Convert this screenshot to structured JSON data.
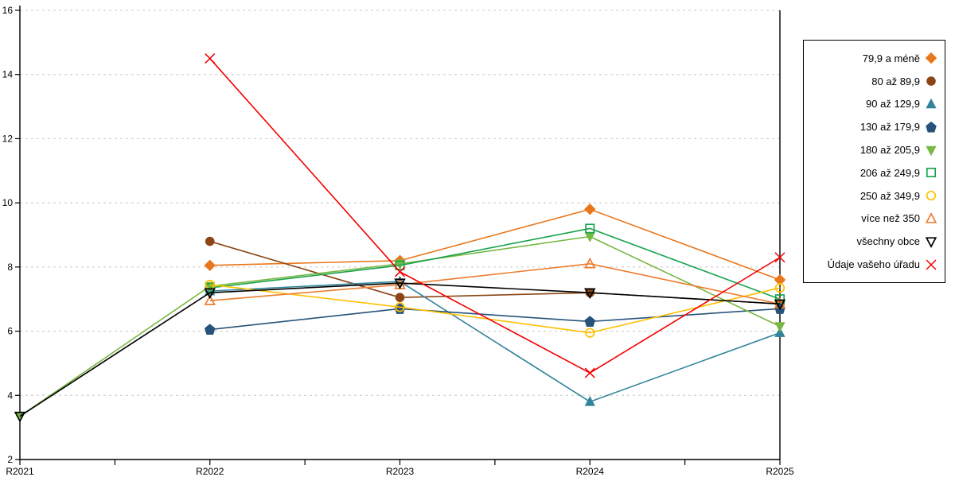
{
  "chart_data": {
    "type": "line",
    "title": "",
    "xlabel": "",
    "ylabel": "",
    "x_categories": [
      "R2021",
      "R2022",
      "R2023",
      "R2024",
      "R2025"
    ],
    "y_ticks": [
      2,
      4,
      6,
      8,
      10,
      12,
      14,
      16
    ],
    "ylim": [
      2,
      16
    ],
    "grid": "horizontal-dashed",
    "legend_position": "right-outside",
    "colors": {
      "gridline": "#c8c8c8",
      "axis": "#000000",
      "background": "#ffffff"
    },
    "series": [
      {
        "name": "79,9 a méně",
        "marker": "diamond",
        "filled": true,
        "color": "#e8761b",
        "values": [
          null,
          8.05,
          8.2,
          9.8,
          7.6
        ]
      },
      {
        "name": "80 až 89,9",
        "marker": "circle",
        "filled": true,
        "color": "#8c4515",
        "values": [
          null,
          8.8,
          7.05,
          7.2,
          6.85
        ]
      },
      {
        "name": "90 až 129,9",
        "marker": "triangle-up",
        "filled": true,
        "color": "#31849b",
        "values": [
          null,
          7.25,
          7.55,
          3.8,
          5.95
        ]
      },
      {
        "name": "130 až 179,9",
        "marker": "pentagon",
        "filled": true,
        "color": "#27537a",
        "values": [
          null,
          6.05,
          6.7,
          6.3,
          6.7
        ]
      },
      {
        "name": "180 až 205,9",
        "marker": "triangle-down",
        "filled": true,
        "color": "#77b843",
        "values": [
          3.35,
          7.4,
          8.1,
          8.95,
          6.15
        ]
      },
      {
        "name": "206 až 249,9",
        "marker": "square",
        "filled": false,
        "color": "#1aa34e",
        "values": [
          null,
          7.35,
          8.05,
          9.2,
          7.0
        ]
      },
      {
        "name": "250 až 349,9",
        "marker": "circle",
        "filled": false,
        "color": "#ffc000",
        "values": [
          null,
          7.45,
          6.75,
          5.95,
          7.35
        ]
      },
      {
        "name": "více než 350",
        "marker": "triangle-up",
        "filled": false,
        "color": "#ed7d31",
        "values": [
          null,
          6.95,
          7.45,
          8.1,
          6.85
        ]
      },
      {
        "name": "všechny obce",
        "marker": "triangle-down",
        "filled": false,
        "color": "#000000",
        "values": [
          3.35,
          7.2,
          7.5,
          7.2,
          6.85
        ]
      },
      {
        "name": "Údaje vašeho úřadu",
        "marker": "x",
        "filled": false,
        "color": "#f40000",
        "values": [
          null,
          14.5,
          7.85,
          4.7,
          8.3
        ]
      }
    ]
  }
}
